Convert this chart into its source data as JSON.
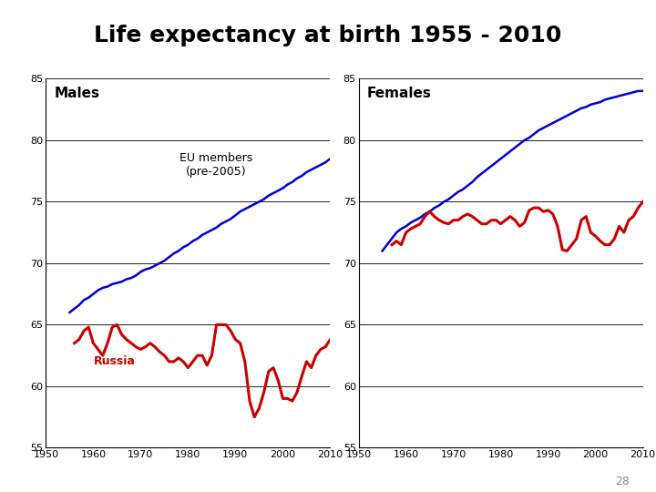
{
  "title": "Life expectancy at birth 1955 - 2010",
  "title_fontsize": 18,
  "title_fontweight": "bold",
  "background_color": "#ffffff",
  "xlim": [
    1950,
    2010
  ],
  "ylim": [
    55,
    85
  ],
  "yticks": [
    55,
    60,
    65,
    70,
    75,
    80,
    85
  ],
  "xticks": [
    1950,
    1960,
    1970,
    1980,
    1990,
    2000,
    2010
  ],
  "eu_color": "#0000dd",
  "russia_color": "#cc0000",
  "label_eu": "EU members\n(pre-2005)",
  "label_russia": "Russia",
  "label_males": "Males",
  "label_females": "Females",
  "page_number": "28",
  "years": [
    1955,
    1956,
    1957,
    1958,
    1959,
    1960,
    1961,
    1962,
    1963,
    1964,
    1965,
    1966,
    1967,
    1968,
    1969,
    1970,
    1971,
    1972,
    1973,
    1974,
    1975,
    1976,
    1977,
    1978,
    1979,
    1980,
    1981,
    1982,
    1983,
    1984,
    1985,
    1986,
    1987,
    1988,
    1989,
    1990,
    1991,
    1992,
    1993,
    1994,
    1995,
    1996,
    1997,
    1998,
    1999,
    2000,
    2001,
    2002,
    2003,
    2004,
    2005,
    2006,
    2007,
    2008,
    2009,
    2010
  ],
  "eu_male": [
    66.0,
    66.3,
    66.6,
    67.0,
    67.2,
    67.5,
    67.8,
    68.0,
    68.1,
    68.3,
    68.4,
    68.5,
    68.7,
    68.8,
    69.0,
    69.3,
    69.5,
    69.6,
    69.8,
    70.0,
    70.2,
    70.5,
    70.8,
    71.0,
    71.3,
    71.5,
    71.8,
    72.0,
    72.3,
    72.5,
    72.7,
    72.9,
    73.2,
    73.4,
    73.6,
    73.9,
    74.2,
    74.4,
    74.6,
    74.8,
    75.0,
    75.2,
    75.5,
    75.7,
    75.9,
    76.1,
    76.4,
    76.6,
    76.9,
    77.1,
    77.4,
    77.6,
    77.8,
    78.0,
    78.2,
    78.5
  ],
  "russia_male": [
    63.0,
    63.5,
    63.8,
    64.5,
    64.8,
    63.5,
    63.0,
    62.5,
    63.5,
    64.8,
    65.0,
    64.2,
    63.8,
    63.5,
    63.2,
    63.0,
    63.2,
    63.5,
    63.2,
    62.8,
    62.5,
    62.0,
    62.0,
    62.3,
    62.0,
    61.5,
    62.0,
    62.5,
    62.5,
    61.7,
    62.5,
    65.0,
    65.0,
    65.0,
    64.5,
    63.8,
    63.5,
    62.0,
    58.8,
    57.5,
    58.2,
    59.5,
    61.2,
    61.5,
    60.5,
    59.0,
    59.0,
    58.8,
    59.5,
    60.8,
    62.0,
    61.5,
    62.5,
    63.0,
    63.2,
    63.8
  ],
  "russia_male_start_year": 1956,
  "eu_female": [
    71.0,
    71.5,
    72.0,
    72.5,
    72.8,
    73.0,
    73.3,
    73.5,
    73.7,
    74.0,
    74.2,
    74.5,
    74.7,
    75.0,
    75.2,
    75.5,
    75.8,
    76.0,
    76.3,
    76.6,
    77.0,
    77.3,
    77.6,
    77.9,
    78.2,
    78.5,
    78.8,
    79.1,
    79.4,
    79.7,
    80.0,
    80.2,
    80.5,
    80.8,
    81.0,
    81.2,
    81.4,
    81.6,
    81.8,
    82.0,
    82.2,
    82.4,
    82.6,
    82.7,
    82.9,
    83.0,
    83.1,
    83.3,
    83.4,
    83.5,
    83.6,
    83.7,
    83.8,
    83.9,
    84.0,
    84.0
  ],
  "russia_female": [
    71.1,
    71.2,
    71.5,
    71.8,
    71.5,
    72.5,
    72.8,
    73.0,
    73.2,
    73.8,
    74.2,
    73.8,
    73.5,
    73.3,
    73.2,
    73.5,
    73.5,
    73.8,
    74.0,
    73.8,
    73.5,
    73.2,
    73.2,
    73.5,
    73.5,
    73.2,
    73.5,
    73.8,
    73.5,
    73.0,
    73.3,
    74.3,
    74.5,
    74.5,
    74.2,
    74.3,
    74.0,
    73.0,
    71.1,
    71.0,
    71.5,
    72.0,
    73.5,
    73.8,
    72.5,
    72.2,
    71.8,
    71.5,
    71.5,
    72.0,
    73.0,
    72.5,
    73.5,
    73.8,
    74.5,
    75.0
  ],
  "russia_female_start_year": 1957
}
